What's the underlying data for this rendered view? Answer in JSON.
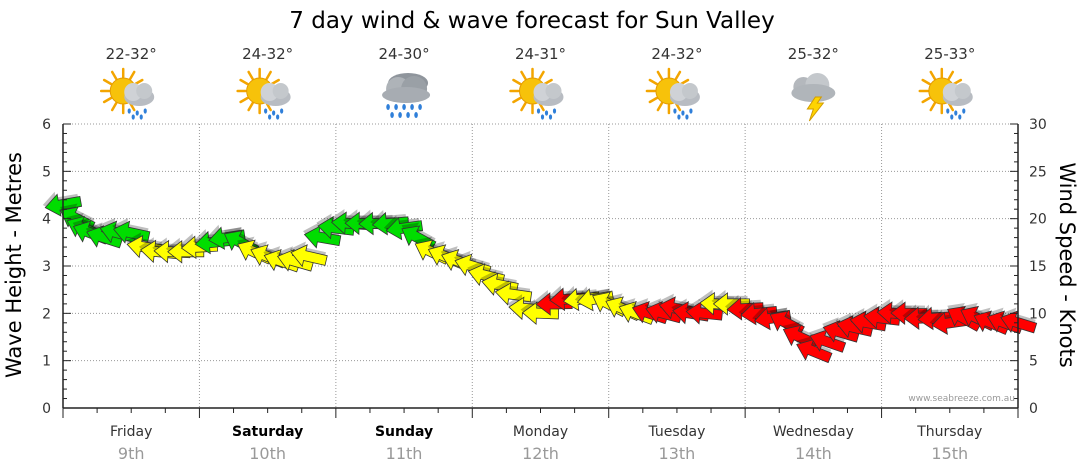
{
  "chart_data": {
    "type": "line",
    "title": "7 day wind & wave forecast for Sun Valley",
    "credit": "www.seabreeze.com.au",
    "ylabel_left": "Wave Height - Metres",
    "ylabel_right": "Wind Speed - Knots",
    "ylim_left": [
      0,
      6
    ],
    "ylim_right": [
      0,
      30
    ],
    "yticks_left": [
      "0",
      "1",
      "2",
      "3",
      "4",
      "5",
      "6"
    ],
    "yticks_right": [
      "0",
      "5",
      "10",
      "15",
      "20",
      "25",
      "30"
    ],
    "grid": true,
    "colors": {
      "light": "#00dd00",
      "moderate": "#ffff00",
      "strong": "#ff0000",
      "outline": "#333333"
    },
    "days": [
      {
        "name": "Friday",
        "date": "9th",
        "temp": "22-32°",
        "icon": "sun-cloud-showers-icon",
        "bold": false
      },
      {
        "name": "Saturday",
        "date": "10th",
        "temp": "24-32°",
        "icon": "sun-cloud-showers-icon",
        "bold": true
      },
      {
        "name": "Sunday",
        "date": "11th",
        "temp": "24-30°",
        "icon": "rain-cloud-icon",
        "bold": true
      },
      {
        "name": "Monday",
        "date": "12th",
        "temp": "24-31°",
        "icon": "sun-cloud-showers-icon",
        "bold": false
      },
      {
        "name": "Tuesday",
        "date": "13th",
        "temp": "24-32°",
        "icon": "sun-cloud-showers-icon",
        "bold": false
      },
      {
        "name": "Wednesday",
        "date": "14th",
        "temp": "25-32°",
        "icon": "storm-cloud-icon",
        "bold": false
      },
      {
        "name": "Thursday",
        "date": "15th",
        "temp": "25-33°",
        "icon": "sun-cloud-showers-icon",
        "bold": false
      }
    ],
    "series": [
      {
        "name": "Wind Speed",
        "axis": "right",
        "x": [
          0.0,
          0.1,
          0.15,
          0.2,
          0.3,
          0.4,
          0.5,
          0.6,
          0.7,
          0.8,
          0.9,
          1.0,
          1.1,
          1.2,
          1.3,
          1.4,
          1.5,
          1.6,
          1.7,
          1.8,
          1.9,
          2.0,
          2.1,
          2.2,
          2.3,
          2.4,
          2.5,
          2.6,
          2.7,
          2.8,
          2.9,
          3.0,
          3.1,
          3.2,
          3.3,
          3.4,
          3.5,
          3.6,
          3.7,
          3.8,
          3.9,
          4.0,
          4.1,
          4.2,
          4.3,
          4.4,
          4.5,
          4.6,
          4.7,
          4.8,
          4.9,
          5.0,
          5.1,
          5.2,
          5.3,
          5.4,
          5.5,
          5.6,
          5.7,
          5.8,
          5.9,
          6.0,
          6.1,
          6.2,
          6.3,
          6.4,
          6.5,
          6.6,
          6.7,
          6.8,
          6.9,
          7.0
        ],
        "values": [
          21.5,
          20,
          19,
          18.5,
          18,
          18.5,
          18.5,
          17,
          16,
          15.5,
          15.5,
          16.5,
          18,
          18,
          17.5,
          16,
          15.5,
          15,
          15,
          15.5,
          18.5,
          19.5,
          20,
          20,
          20,
          20,
          20,
          19,
          17,
          16,
          15.5,
          15,
          14.5,
          14,
          13,
          12,
          11,
          10,
          10.5,
          11,
          11,
          11,
          11,
          11,
          10.5,
          10,
          10.5,
          10,
          10,
          11,
          11,
          10.5,
          10,
          9.5,
          9,
          8,
          6,
          6.5,
          8,
          9,
          9.5,
          10,
          10.5,
          10,
          9.5,
          9.5,
          9.5,
          9.5,
          9.5,
          9.5,
          9.5,
          9.5
        ]
      },
      {
        "name": "Wave Height",
        "axis": "left",
        "x": [
          0.0,
          0.1,
          0.15,
          0.2,
          0.3,
          0.4,
          0.5,
          0.6,
          0.7,
          0.8,
          0.9,
          1.0,
          1.1,
          1.2,
          1.3,
          1.4,
          1.5,
          1.6,
          1.7,
          1.8,
          1.9,
          2.0,
          2.1,
          2.2,
          2.3,
          2.4,
          2.5,
          2.6,
          2.7,
          2.8,
          2.9,
          3.0,
          3.1,
          3.2,
          3.3,
          3.4,
          3.5,
          3.6,
          3.7,
          3.8,
          3.9,
          4.0,
          4.1,
          4.2,
          4.3,
          4.4,
          4.5,
          4.6,
          4.7,
          4.8,
          4.9,
          5.0,
          5.1,
          5.2,
          5.3,
          5.4,
          5.5,
          5.6,
          5.7,
          5.8,
          5.9,
          6.0,
          6.1,
          6.2,
          6.3,
          6.4,
          6.5,
          6.6,
          6.7,
          6.8,
          6.9,
          7.0
        ],
        "values": [
          4.3,
          4.0,
          3.8,
          3.7,
          3.6,
          3.7,
          3.7,
          3.4,
          3.3,
          3.3,
          3.3,
          3.4,
          3.5,
          3.6,
          3.5,
          3.3,
          3.2,
          3.1,
          3.1,
          3.2,
          3.6,
          3.8,
          3.9,
          3.9,
          3.9,
          3.9,
          3.8,
          3.6,
          3.3,
          3.2,
          3.1,
          3.0,
          2.8,
          2.6,
          2.4,
          2.1,
          2.0,
          2.2,
          2.3,
          2.3,
          2.3,
          2.2,
          2.1,
          2.0,
          2.0,
          2.0,
          2.1,
          2.0,
          2.0,
          2.2,
          2.2,
          2.1,
          2.0,
          1.9,
          1.8,
          1.5,
          1.2,
          1.4,
          1.6,
          1.7,
          1.8,
          1.9,
          2.0,
          2.0,
          1.9,
          1.9,
          1.8,
          1.9,
          1.9,
          1.8,
          1.8,
          1.8
        ]
      }
    ]
  }
}
